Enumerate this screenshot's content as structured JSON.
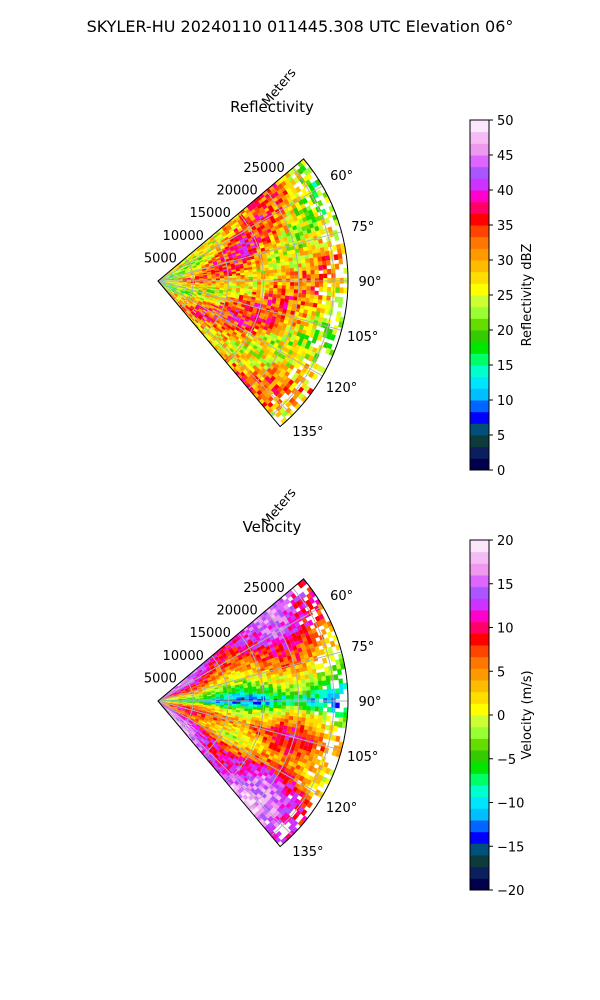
{
  "figure_title": "SKYLER-HU  20240110  011445.308 UTC Elevation 06°",
  "chart_data": [
    {
      "type": "heatmap",
      "projection": "polar-sector",
      "title": "Reflectivity",
      "radial_label": "Meters",
      "radial_ticks": [
        5000,
        10000,
        15000,
        20000,
        25000
      ],
      "radial_tick_labels": [
        "5000",
        "10000",
        "15000",
        "20000",
        "25000"
      ],
      "r_range": [
        0,
        27000
      ],
      "azimuth_range_deg": [
        50,
        140
      ],
      "angle_ticks": [
        60,
        75,
        90,
        105,
        120,
        135
      ],
      "angle_tick_labels": [
        "60°",
        "75°",
        "90°",
        "105°",
        "120°",
        "135°"
      ],
      "grid": true,
      "colorbar": {
        "label": "Reflectivity dBZ",
        "range": [
          0,
          50
        ],
        "ticks": [
          0,
          5,
          10,
          15,
          20,
          25,
          30,
          35,
          40,
          45,
          50
        ],
        "tick_labels": [
          "0",
          "5",
          "10",
          "15",
          "20",
          "25",
          "30",
          "35",
          "40",
          "45",
          "50"
        ],
        "colors": [
          "#00004d",
          "#0b1f5c",
          "#0d3a3a",
          "#00507a",
          "#0000ff",
          "#0066ff",
          "#00bfff",
          "#00e5ff",
          "#00ffcc",
          "#00ff66",
          "#00e600",
          "#33cc00",
          "#66dd00",
          "#99ff33",
          "#ccff33",
          "#ffff00",
          "#ffdd00",
          "#ffbb00",
          "#ff9900",
          "#ff7700",
          "#ff4400",
          "#ff0000",
          "#ff0066",
          "#ff00cc",
          "#cc33ff",
          "#aa55ff",
          "#dd66ff",
          "#ee99ee",
          "#f4bbf4",
          "#fbe6fb"
        ]
      },
      "field_profile": [
        [
          0,
          20
        ],
        [
          2500,
          24
        ],
        [
          6000,
          29
        ],
        [
          12000,
          32
        ],
        [
          18000,
          30
        ],
        [
          24000,
          27
        ],
        [
          27000,
          24
        ]
      ]
    },
    {
      "type": "heatmap",
      "projection": "polar-sector",
      "title": "Velocity",
      "radial_label": "Meters",
      "radial_ticks": [
        5000,
        10000,
        15000,
        20000,
        25000
      ],
      "radial_tick_labels": [
        "5000",
        "10000",
        "15000",
        "20000",
        "25000"
      ],
      "r_range": [
        0,
        27000
      ],
      "azimuth_range_deg": [
        50,
        140
      ],
      "angle_ticks": [
        60,
        75,
        90,
        105,
        120,
        135
      ],
      "angle_tick_labels": [
        "60°",
        "75°",
        "90°",
        "105°",
        "120°",
        "135°"
      ],
      "grid": true,
      "colorbar": {
        "label": "Velocity (m/s)",
        "range": [
          -20,
          20
        ],
        "ticks": [
          -20,
          -15,
          -10,
          -5,
          0,
          5,
          10,
          15,
          20
        ],
        "tick_labels": [
          "−20",
          "−15",
          "−10",
          "−5",
          "0",
          "5",
          "10",
          "15",
          "20"
        ],
        "colors": [
          "#00004d",
          "#0b1f5c",
          "#0d3a3a",
          "#00507a",
          "#0000ff",
          "#0066ff",
          "#00bfff",
          "#00e5ff",
          "#00ffcc",
          "#00ff66",
          "#00e600",
          "#33cc00",
          "#66dd00",
          "#99ff33",
          "#ccff33",
          "#ffff00",
          "#ffdd00",
          "#ffbb00",
          "#ff9900",
          "#ff7700",
          "#ff4400",
          "#ff0000",
          "#ff0066",
          "#ff00cc",
          "#cc33ff",
          "#aa55ff",
          "#dd66ff",
          "#ee99ee",
          "#f4bbf4",
          "#fbe6fb"
        ]
      },
      "field_profile_by_azimuth": [
        [
          50,
          14
        ],
        [
          62,
          10
        ],
        [
          75,
          3
        ],
        [
          86,
          -6
        ],
        [
          90,
          -12
        ],
        [
          96,
          0
        ],
        [
          105,
          8
        ],
        [
          116,
          2
        ],
        [
          126,
          12
        ],
        [
          140,
          16
        ]
      ]
    }
  ]
}
